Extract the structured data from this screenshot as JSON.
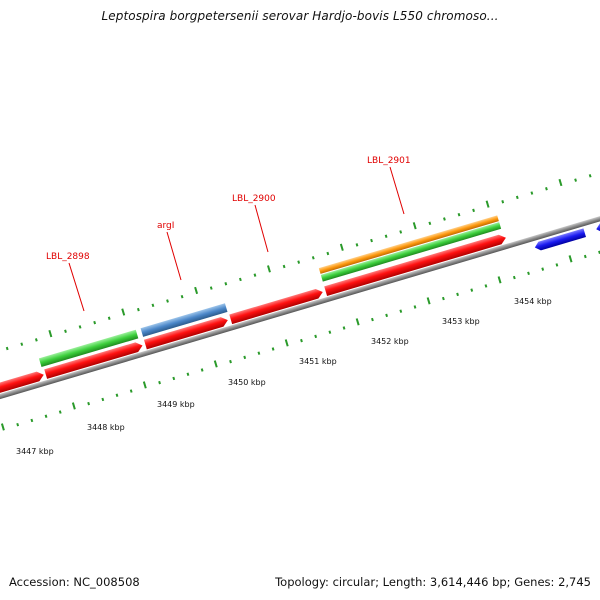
{
  "title": "Leptospira borgpetersenii serovar Hardjo-bovis L550 chromoso...",
  "footer": {
    "accession": "Accession: NC_008508",
    "summary": "Topology: circular; Length: 3,614,446 bp; Genes: 2,745"
  },
  "colors": {
    "backbone": "#8a8a8a",
    "forward_cds": "#ff1010",
    "reverse_cds": "#1a1af0",
    "gene_green": "#3ccf3c",
    "gene_steelblue": "#4a86c8",
    "gene_orange": "#ff9a10",
    "tick": "#2a9a2a",
    "label": "#e00000"
  },
  "scale_labels": [
    "3447 kbp",
    "3448 kbp",
    "3449 kbp",
    "3450 kbp",
    "3451 kbp",
    "3452 kbp",
    "3453 kbp",
    "3454 kbp"
  ],
  "gene_labels": [
    "LBL_2898",
    "argI",
    "LBL_2900",
    "LBL_2901"
  ]
}
